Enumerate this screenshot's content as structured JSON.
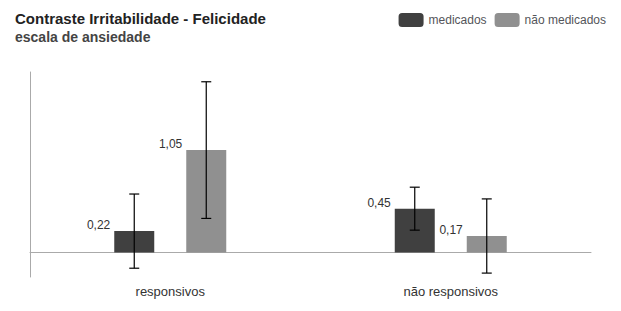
{
  "chart_data": {
    "type": "bar",
    "title": "Contraste Irritabilidade - Felicidade",
    "subtitle": "escala de ansiedade",
    "categories": [
      "responsivos",
      "não responsivos"
    ],
    "series": [
      {
        "name": "medicados",
        "color": "#404040",
        "values": [
          0.22,
          0.45
        ],
        "errors": [
          0.38,
          0.22
        ],
        "value_labels": [
          "0,22",
          "0,45"
        ]
      },
      {
        "name": "não medicados",
        "color": "#909090",
        "values": [
          1.05,
          0.17
        ],
        "errors": [
          0.7,
          0.38
        ],
        "value_labels": [
          "1,05",
          "0,17"
        ]
      }
    ],
    "ylim": [
      -0.25,
      1.85
    ],
    "grid": false,
    "legend": "upper right",
    "data_labels": true,
    "tick_labels": "x"
  }
}
